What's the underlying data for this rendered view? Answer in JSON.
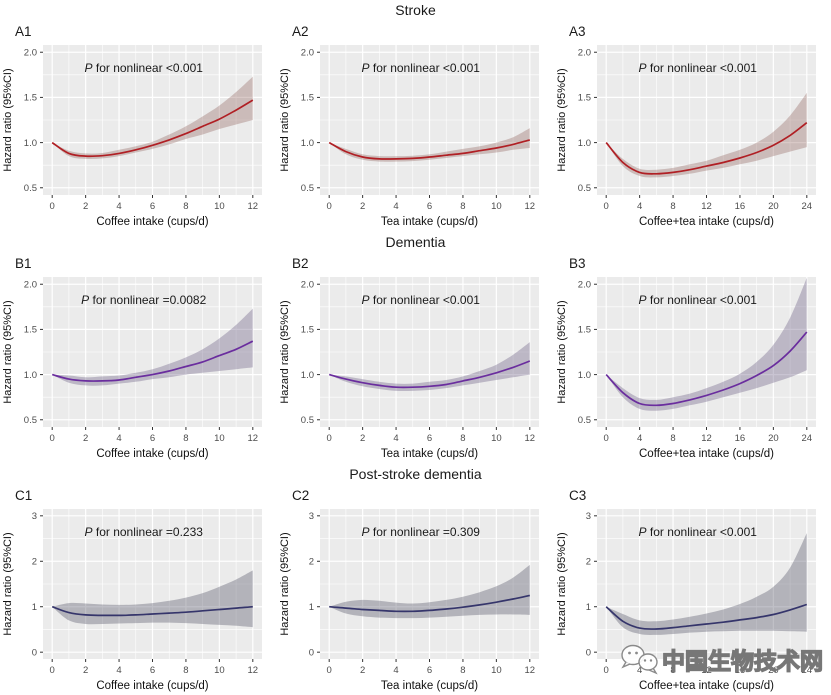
{
  "figure": {
    "rows": [
      {
        "title": "Stroke"
      },
      {
        "title": "Dementia"
      },
      {
        "title": "Post-stroke dementia"
      }
    ]
  },
  "watermark": {
    "icon": "wechat-icon",
    "text": "中国生物技术网"
  },
  "style_colors": {
    "panel_bg": "#ebebeb",
    "grid": "#ffffff",
    "tick": "#333333",
    "tick_label": "#4d4d4d",
    "axis_title": "#111111",
    "stroke_line": "#b01f24",
    "dementia_line": "#6a2d9e",
    "psd_line": "#35356b"
  },
  "chart_data": [
    {
      "id": "A1",
      "row": 0,
      "type": "line",
      "outcome": "Stroke",
      "xlabel": "Coffee intake (cups/d)",
      "ylabel": "Hazard ratio (95%CI)",
      "p_italic": "P",
      "p_rest": " for nonlinear <0.001",
      "line_color": "#b01f24",
      "band_color": "rgba(139,90,85,0.33)",
      "xlim": [
        -0.55,
        12.55
      ],
      "ylim": [
        0.42,
        2.08
      ],
      "xticks": [
        0,
        2,
        4,
        6,
        8,
        10,
        12
      ],
      "xtick_labels": [
        "0",
        "2",
        "4",
        "6",
        "8",
        "10",
        "12"
      ],
      "yticks": [
        0.5,
        1.0,
        1.5,
        2.0
      ],
      "ytick_labels": [
        "0.5",
        "1.0",
        "1.5",
        "2.0"
      ],
      "x": [
        0,
        1,
        2,
        3,
        4,
        5,
        6,
        7,
        8,
        9,
        10,
        11,
        12
      ],
      "y": [
        1.0,
        0.88,
        0.85,
        0.855,
        0.88,
        0.92,
        0.97,
        1.03,
        1.1,
        1.18,
        1.26,
        1.36,
        1.47
      ],
      "ci_lower": [
        1.0,
        0.85,
        0.82,
        0.825,
        0.85,
        0.89,
        0.93,
        0.98,
        1.04,
        1.09,
        1.15,
        1.2,
        1.25
      ],
      "ci_upper": [
        1.0,
        0.91,
        0.88,
        0.885,
        0.92,
        0.96,
        1.01,
        1.09,
        1.18,
        1.29,
        1.41,
        1.56,
        1.73
      ]
    },
    {
      "id": "A2",
      "row": 0,
      "type": "line",
      "outcome": "Stroke",
      "xlabel": "Tea intake (cups/d)",
      "ylabel": "Hazard ratio (95%CI)",
      "p_italic": "P",
      "p_rest": " for nonlinear <0.001",
      "line_color": "#b01f24",
      "band_color": "rgba(139,90,85,0.33)",
      "xlim": [
        -0.55,
        12.55
      ],
      "ylim": [
        0.42,
        2.08
      ],
      "xticks": [
        0,
        2,
        4,
        6,
        8,
        10,
        12
      ],
      "xtick_labels": [
        "0",
        "2",
        "4",
        "6",
        "8",
        "10",
        "12"
      ],
      "yticks": [
        0.5,
        1.0,
        1.5,
        2.0
      ],
      "ytick_labels": [
        "0.5",
        "1.0",
        "1.5",
        "2.0"
      ],
      "x": [
        0,
        1,
        2,
        3,
        4,
        5,
        6,
        7,
        8,
        9,
        10,
        11,
        12
      ],
      "y": [
        1.0,
        0.9,
        0.84,
        0.82,
        0.82,
        0.825,
        0.84,
        0.86,
        0.88,
        0.91,
        0.94,
        0.98,
        1.03
      ],
      "ci_lower": [
        1.0,
        0.87,
        0.81,
        0.79,
        0.79,
        0.795,
        0.81,
        0.83,
        0.85,
        0.87,
        0.89,
        0.92,
        0.94
      ],
      "ci_upper": [
        1.0,
        0.93,
        0.87,
        0.85,
        0.85,
        0.855,
        0.87,
        0.9,
        0.93,
        0.96,
        1.0,
        1.06,
        1.16
      ]
    },
    {
      "id": "A3",
      "row": 0,
      "type": "line",
      "outcome": "Stroke",
      "xlabel": "Coffee+tea intake (cups/d)",
      "ylabel": "Hazard ratio (95%CI)",
      "p_italic": "P",
      "p_rest": " for nonlinear <0.001",
      "line_color": "#b01f24",
      "band_color": "rgba(139,90,85,0.33)",
      "xlim": [
        -1.1,
        25.1
      ],
      "ylim": [
        0.42,
        2.08
      ],
      "xticks": [
        0,
        4,
        8,
        12,
        16,
        20,
        24
      ],
      "xtick_labels": [
        "0",
        "4",
        "8",
        "12",
        "16",
        "20",
        "24"
      ],
      "yticks": [
        0.5,
        1.0,
        1.5,
        2.0
      ],
      "ytick_labels": [
        "0.5",
        "1.0",
        "1.5",
        "2.0"
      ],
      "x": [
        0,
        2,
        4,
        6,
        8,
        10,
        12,
        14,
        16,
        18,
        20,
        22,
        24
      ],
      "y": [
        1.0,
        0.78,
        0.67,
        0.655,
        0.67,
        0.7,
        0.74,
        0.78,
        0.83,
        0.89,
        0.97,
        1.08,
        1.22
      ],
      "ci_lower": [
        1.0,
        0.74,
        0.63,
        0.615,
        0.63,
        0.655,
        0.69,
        0.72,
        0.76,
        0.8,
        0.85,
        0.9,
        0.95
      ],
      "ci_upper": [
        1.0,
        0.82,
        0.71,
        0.7,
        0.72,
        0.76,
        0.8,
        0.86,
        0.92,
        1.0,
        1.12,
        1.3,
        1.55
      ]
    },
    {
      "id": "B1",
      "row": 1,
      "type": "line",
      "outcome": "Dementia",
      "xlabel": "Coffee intake (cups/d)",
      "ylabel": "Hazard ratio (95%CI)",
      "p_italic": "P",
      "p_rest": " for nonlinear =0.0082",
      "line_color": "#6a2d9e",
      "band_color": "rgba(100,85,125,0.35)",
      "xlim": [
        -0.55,
        12.55
      ],
      "ylim": [
        0.42,
        2.08
      ],
      "xticks": [
        0,
        2,
        4,
        6,
        8,
        10,
        12
      ],
      "xtick_labels": [
        "0",
        "2",
        "4",
        "6",
        "8",
        "10",
        "12"
      ],
      "yticks": [
        0.5,
        1.0,
        1.5,
        2.0
      ],
      "ytick_labels": [
        "0.5",
        "1.0",
        "1.5",
        "2.0"
      ],
      "x": [
        0,
        1,
        2,
        3,
        4,
        5,
        6,
        7,
        8,
        9,
        10,
        11,
        12
      ],
      "y": [
        1.0,
        0.95,
        0.93,
        0.93,
        0.94,
        0.97,
        1.0,
        1.04,
        1.09,
        1.14,
        1.21,
        1.28,
        1.37
      ],
      "ci_lower": [
        1.0,
        0.91,
        0.88,
        0.88,
        0.9,
        0.92,
        0.95,
        0.97,
        1.0,
        1.02,
        1.04,
        1.06,
        1.08
      ],
      "ci_upper": [
        1.0,
        0.99,
        0.97,
        0.98,
        0.99,
        1.02,
        1.06,
        1.12,
        1.19,
        1.28,
        1.4,
        1.55,
        1.73
      ]
    },
    {
      "id": "B2",
      "row": 1,
      "type": "line",
      "outcome": "Dementia",
      "xlabel": "Tea intake (cups/d)",
      "ylabel": "Hazard ratio (95%CI)",
      "p_italic": "P",
      "p_rest": " for nonlinear <0.001",
      "line_color": "#6a2d9e",
      "band_color": "rgba(100,85,125,0.35)",
      "xlim": [
        -0.55,
        12.55
      ],
      "ylim": [
        0.42,
        2.08
      ],
      "xticks": [
        0,
        2,
        4,
        6,
        8,
        10,
        12
      ],
      "xtick_labels": [
        "0",
        "2",
        "4",
        "6",
        "8",
        "10",
        "12"
      ],
      "yticks": [
        0.5,
        1.0,
        1.5,
        2.0
      ],
      "ytick_labels": [
        "0.5",
        "1.0",
        "1.5",
        "2.0"
      ],
      "x": [
        0,
        1,
        2,
        3,
        4,
        5,
        6,
        7,
        8,
        9,
        10,
        11,
        12
      ],
      "y": [
        1.0,
        0.95,
        0.91,
        0.88,
        0.86,
        0.86,
        0.87,
        0.89,
        0.93,
        0.97,
        1.02,
        1.08,
        1.15
      ],
      "ci_lower": [
        1.0,
        0.92,
        0.87,
        0.84,
        0.82,
        0.82,
        0.83,
        0.85,
        0.88,
        0.91,
        0.94,
        0.97,
        1.0
      ],
      "ci_upper": [
        1.0,
        0.98,
        0.95,
        0.92,
        0.9,
        0.9,
        0.92,
        0.94,
        0.98,
        1.04,
        1.11,
        1.22,
        1.36
      ]
    },
    {
      "id": "B3",
      "row": 1,
      "type": "line",
      "outcome": "Dementia",
      "xlabel": "Coffee+tea intake (cups/d)",
      "ylabel": "Hazard ratio (95%CI)",
      "p_italic": "P",
      "p_rest": " for nonlinear <0.001",
      "line_color": "#6a2d9e",
      "band_color": "rgba(100,85,125,0.35)",
      "xlim": [
        -1.1,
        25.1
      ],
      "ylim": [
        0.42,
        2.08
      ],
      "xticks": [
        0,
        4,
        8,
        12,
        16,
        20,
        24
      ],
      "xtick_labels": [
        "0",
        "4",
        "8",
        "12",
        "16",
        "20",
        "24"
      ],
      "yticks": [
        0.5,
        1.0,
        1.5,
        2.0
      ],
      "ytick_labels": [
        "0.5",
        "1.0",
        "1.5",
        "2.0"
      ],
      "x": [
        0,
        2,
        4,
        6,
        8,
        10,
        12,
        14,
        16,
        18,
        20,
        22,
        24
      ],
      "y": [
        1.0,
        0.8,
        0.68,
        0.66,
        0.68,
        0.72,
        0.77,
        0.83,
        0.9,
        0.99,
        1.1,
        1.26,
        1.47
      ],
      "ci_lower": [
        1.0,
        0.75,
        0.62,
        0.6,
        0.62,
        0.66,
        0.7,
        0.75,
        0.8,
        0.85,
        0.91,
        0.97,
        1.05
      ],
      "ci_upper": [
        1.0,
        0.85,
        0.74,
        0.72,
        0.75,
        0.79,
        0.85,
        0.92,
        1.01,
        1.14,
        1.33,
        1.63,
        2.07
      ]
    },
    {
      "id": "C1",
      "row": 2,
      "type": "line",
      "outcome": "Post-stroke dementia",
      "xlabel": "Coffee intake (cups/d)",
      "ylabel": "Hazard ratio (95%CI)",
      "p_italic": "P",
      "p_rest": " for nonlinear =0.233",
      "line_color": "#35356b",
      "band_color": "rgba(75,75,95,0.35)",
      "xlim": [
        -0.55,
        12.55
      ],
      "ylim": [
        -0.15,
        3.15
      ],
      "xticks": [
        0,
        2,
        4,
        6,
        8,
        10,
        12
      ],
      "xtick_labels": [
        "0",
        "2",
        "4",
        "6",
        "8",
        "10",
        "12"
      ],
      "yticks": [
        0,
        1,
        2,
        3
      ],
      "ytick_labels": [
        "0",
        "1",
        "2",
        "3"
      ],
      "x": [
        0,
        1,
        2,
        3,
        4,
        5,
        6,
        7,
        8,
        9,
        10,
        11,
        12
      ],
      "y": [
        1.0,
        0.87,
        0.82,
        0.81,
        0.81,
        0.82,
        0.84,
        0.86,
        0.88,
        0.91,
        0.94,
        0.97,
        1.0
      ],
      "ci_lower": [
        1.0,
        0.7,
        0.62,
        0.62,
        0.63,
        0.64,
        0.65,
        0.65,
        0.64,
        0.62,
        0.6,
        0.58,
        0.55
      ],
      "ci_upper": [
        1.0,
        1.08,
        1.07,
        1.05,
        1.04,
        1.05,
        1.08,
        1.13,
        1.2,
        1.3,
        1.44,
        1.6,
        1.8
      ]
    },
    {
      "id": "C2",
      "row": 2,
      "type": "line",
      "outcome": "Post-stroke dementia",
      "xlabel": "Tea intake (cups/d)",
      "ylabel": "Hazard ratio (95%CI)",
      "p_italic": "P",
      "p_rest": " for nonlinear =0.309",
      "line_color": "#35356b",
      "band_color": "rgba(75,75,95,0.35)",
      "xlim": [
        -0.55,
        12.55
      ],
      "ylim": [
        -0.15,
        3.15
      ],
      "xticks": [
        0,
        2,
        4,
        6,
        8,
        10,
        12
      ],
      "xtick_labels": [
        "0",
        "2",
        "4",
        "6",
        "8",
        "10",
        "12"
      ],
      "yticks": [
        0,
        1,
        2,
        3
      ],
      "ytick_labels": [
        "0",
        "1",
        "2",
        "3"
      ],
      "x": [
        0,
        1,
        2,
        3,
        4,
        5,
        6,
        7,
        8,
        9,
        10,
        11,
        12
      ],
      "y": [
        1.0,
        0.97,
        0.94,
        0.92,
        0.9,
        0.9,
        0.92,
        0.95,
        0.99,
        1.04,
        1.1,
        1.17,
        1.25
      ],
      "ci_lower": [
        1.0,
        0.85,
        0.79,
        0.76,
        0.75,
        0.75,
        0.76,
        0.78,
        0.8,
        0.82,
        0.83,
        0.83,
        0.82
      ],
      "ci_upper": [
        1.0,
        1.11,
        1.15,
        1.13,
        1.09,
        1.07,
        1.1,
        1.15,
        1.22,
        1.32,
        1.45,
        1.64,
        1.92
      ]
    },
    {
      "id": "C3",
      "row": 2,
      "type": "line",
      "outcome": "Post-stroke dementia",
      "xlabel": "Coffee+tea intake (cups/d)",
      "ylabel": "Hazard ratio (95%CI)",
      "p_italic": "P",
      "p_rest": " for nonlinear <0.001",
      "line_color": "#35356b",
      "band_color": "rgba(75,75,95,0.35)",
      "xlim": [
        -1.1,
        25.1
      ],
      "ylim": [
        -0.15,
        3.15
      ],
      "xticks": [
        0,
        4,
        8,
        12,
        16,
        20,
        24
      ],
      "xtick_labels": [
        "0",
        "4",
        "8",
        "12",
        "16",
        "20",
        "24"
      ],
      "yticks": [
        0,
        1,
        2,
        3
      ],
      "ytick_labels": [
        "0",
        "1",
        "2",
        "3"
      ],
      "x": [
        0,
        2,
        4,
        6,
        8,
        10,
        12,
        14,
        16,
        18,
        20,
        22,
        24
      ],
      "y": [
        1.0,
        0.68,
        0.53,
        0.51,
        0.54,
        0.58,
        0.62,
        0.66,
        0.71,
        0.76,
        0.83,
        0.93,
        1.05
      ],
      "ci_lower": [
        1.0,
        0.55,
        0.4,
        0.38,
        0.4,
        0.43,
        0.45,
        0.46,
        0.47,
        0.47,
        0.47,
        0.46,
        0.45
      ],
      "ci_upper": [
        1.0,
        0.84,
        0.7,
        0.68,
        0.72,
        0.78,
        0.85,
        0.94,
        1.06,
        1.22,
        1.44,
        1.86,
        2.62
      ]
    }
  ]
}
